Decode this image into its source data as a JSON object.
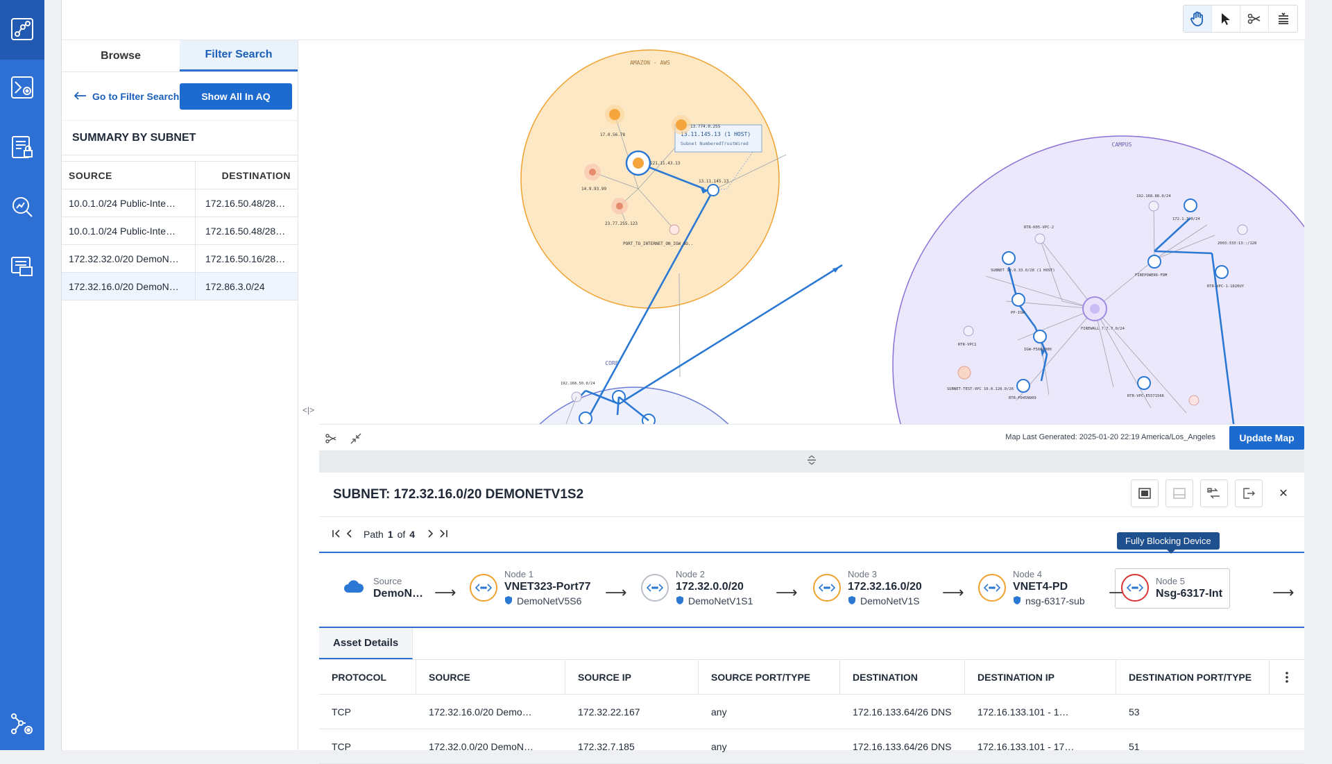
{
  "nav": {
    "icons": [
      "topology-icon",
      "path-analysis-icon",
      "report-lock-icon",
      "search-analytics-icon",
      "asset-list-icon",
      "settings-network-icon"
    ]
  },
  "toolbar": {
    "tools": [
      "hand-pan-icon",
      "pointer-icon",
      "path-trace-icon",
      "layers-icon"
    ]
  },
  "left_panel": {
    "tabs": [
      "Browse",
      "Filter Search"
    ],
    "active_tab": "Filter Search",
    "go_link": "Go to Filter Search",
    "show_all_button": "Show All In AQ",
    "summary_title": "SUMMARY BY SUBNET",
    "columns": [
      "SOURCE",
      "DESTINATION"
    ],
    "rows": [
      [
        "10.0.1.0/24 Public-Inte…",
        "172.16.50.48/28…"
      ],
      [
        "10.0.1.0/24 Public-Inte…",
        "172.16.50.48/28…"
      ],
      [
        "172.32.32.0/20 DemoN…",
        "172.16.50.16/28…"
      ],
      [
        "172.32.16.0/20 DemoN…",
        "172.86.3.0/24"
      ]
    ],
    "selected_row": 3
  },
  "map": {
    "aws_label": "AMAZON - AWS",
    "campus_label": "CAMPUS",
    "core_label": "CORE",
    "callout_title": "13.11.145.13 (1 HOST)",
    "callout_sub": "Subnet NumberedTrustWired",
    "aws_nodes": [
      "17.0.56.78",
      "13.774.0.255",
      "121.11.43.13",
      "13.11.145.13",
      "14.9.93.99",
      "23.77.255.123",
      "PORT_TO_INTERNET_ON_IGW_OO.."
    ],
    "campus_nodes": [
      "192.168.88.0/24",
      "172.1.3.0/24",
      "RTR-K05-VPC-2",
      "2003:333:13::/128",
      "SUBNET 10.0.33.0/28 (1 HOST)",
      "FIREPOWER6-FDM",
      "RTR-VPC-1-1020UY",
      "PP-IGW",
      "FIREWALL 7.7.7.0/24",
      "RTR-VPC1",
      "IGW-F56OL00H",
      "SUBNET-TEST-VPC 10.0.120.0/26",
      "RTR-F045N909",
      "RTR-VPC-E5571566"
    ],
    "core_nodes": [
      "192.168.50.0/24"
    ],
    "generated_text": "Map Last Generated: 2025-01-20 22:19 America/Los_Angeles",
    "update_button": "Update Map"
  },
  "detail": {
    "title": "SUBNET: 172.32.16.0/20 DEMONETV1S2",
    "path_label": "Path",
    "path_index": "1",
    "path_of": "of",
    "path_total": "4",
    "path": [
      {
        "label": "Source",
        "name": "DemoN…",
        "sub": "",
        "ring": "cloud"
      },
      {
        "label": "Node 1",
        "name": "VNET323-Port77",
        "sub": "DemoNetV5S6",
        "ring": "orange"
      },
      {
        "label": "Node 2",
        "name": "172.32.0.0/20",
        "sub": "DemoNetV1S1",
        "ring": "grey"
      },
      {
        "label": "Node 3",
        "name": "172.32.16.0/20",
        "sub": "DemoNetV1S",
        "ring": "orange"
      },
      {
        "label": "Node 4",
        "name": "VNET4-PD",
        "sub": "nsg-6317-sub",
        "ring": "orange"
      },
      {
        "label": "Node 5",
        "name": "Nsg-6317-Int",
        "sub": "",
        "ring": "red"
      }
    ],
    "tooltip": "Fully Blocking Device",
    "asset_tab": "Asset Details",
    "columns": [
      "PROTOCOL",
      "SOURCE",
      "SOURCE IP",
      "SOURCE PORT/TYPE",
      "DESTINATION",
      "DESTINATION IP",
      "DESTINATION PORT/TYPE"
    ],
    "rows": [
      [
        "TCP",
        "172.32.16.0/20 Demo…",
        "172.32.22.167",
        "any",
        "172.16.133.64/26 DNS",
        "172.16.133.101 - 1…",
        "53"
      ],
      [
        "TCP",
        "172.32.0.0/20 DemoN…",
        "172.32.7.185",
        "any",
        "172.16.133.64/26 DNS",
        "172.16.133.101 - 17…",
        "51"
      ]
    ]
  },
  "colors": {
    "nav_bg": "#2d6fd2",
    "accent": "#1e6bd0",
    "aws_fill": "#fde8c6",
    "campus_fill": "#ece8fb",
    "link": "#2b78d4",
    "blocking": "#d83434"
  }
}
